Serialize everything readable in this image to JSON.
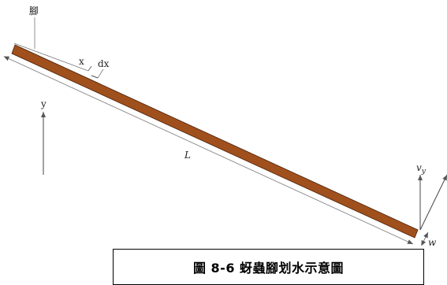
{
  "labels": {
    "leg": "腳",
    "x": "x",
    "dx": "dx",
    "y": "y",
    "L": "L",
    "vy_base": "v",
    "vy_sub": "y",
    "w": "w"
  },
  "caption": "圖 8-6 蚜蟲腳划水示意圖",
  "colors": {
    "leg_fill": "#a0501c",
    "leg_stroke": "#4a2008",
    "line": "#555555"
  }
}
